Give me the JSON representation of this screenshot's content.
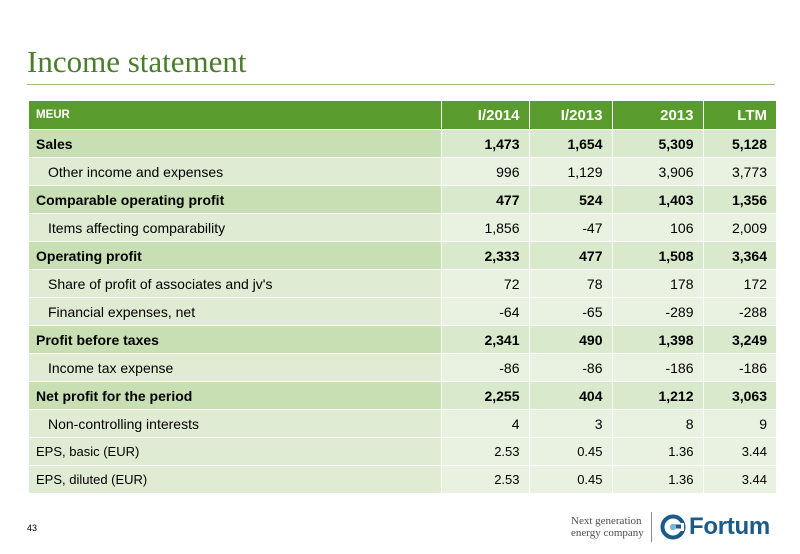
{
  "title": "Income statement",
  "page_number": "43",
  "header": {
    "label": "MEUR",
    "columns": [
      "I/2014",
      "I/2013",
      "2013",
      "LTM"
    ]
  },
  "rows": [
    {
      "label": "Sales",
      "values": [
        "1,473",
        "1,654",
        "5,309",
        "5,128"
      ]
    },
    {
      "label": "Other income and expenses",
      "values": [
        "996",
        "1,129",
        "3,906",
        "3,773"
      ]
    },
    {
      "label": "Comparable operating profit",
      "values": [
        "477",
        "524",
        "1,403",
        "1,356"
      ]
    },
    {
      "label": "Items affecting comparability",
      "values": [
        "1,856",
        "-47",
        "106",
        "2,009"
      ]
    },
    {
      "label": "Operating profit",
      "values": [
        "2,333",
        "477",
        "1,508",
        "3,364"
      ]
    },
    {
      "label": "Share of profit of associates and jv's",
      "values": [
        "72",
        "78",
        "178",
        "172"
      ]
    },
    {
      "label": "Financial expenses, net",
      "values": [
        "-64",
        "-65",
        "-289",
        "-288"
      ]
    },
    {
      "label": "Profit before taxes",
      "values": [
        "2,341",
        "490",
        "1,398",
        "3,249"
      ]
    },
    {
      "label": "Income tax expense",
      "values": [
        "-86",
        "-86",
        "-186",
        "-186"
      ]
    },
    {
      "label": "Net profit for the period",
      "values": [
        "2,255",
        "404",
        "1,212",
        "3,063"
      ]
    },
    {
      "label": "Non-controlling interests",
      "values": [
        "4",
        "3",
        "8",
        "9"
      ]
    },
    {
      "label": "EPS, basic (EUR)",
      "values": [
        "2.53",
        "0.45",
        "1.36",
        "3.44"
      ]
    },
    {
      "label": "EPS, diluted (EUR)",
      "values": [
        "2.53",
        "0.45",
        "1.36",
        "3.44"
      ]
    }
  ],
  "footer": {
    "tagline_line1": "Next generation",
    "tagline_line2": "energy company",
    "logo_text": "Fortum",
    "logo_icon": "fortum-logo-icon",
    "brand_color": "#1c5a8a",
    "accent_color": "#5a9b2d"
  }
}
